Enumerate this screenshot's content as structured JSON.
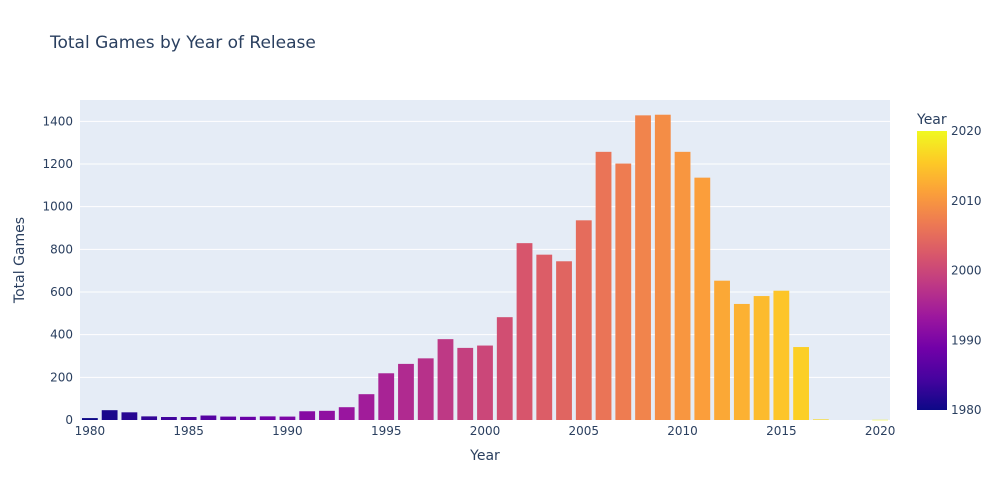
{
  "chart_data": {
    "type": "bar",
    "title": "Total Games by Year of Release",
    "xlabel": "Year",
    "ylabel": "Total Games",
    "xlim": [
      1979.5,
      2020.5
    ],
    "ylim": [
      0,
      1500
    ],
    "x_ticks": [
      "1980",
      "1985",
      "1990",
      "1995",
      "2000",
      "2005",
      "2010",
      "2015",
      "2020"
    ],
    "y_ticks": [
      "0",
      "200",
      "400",
      "600",
      "800",
      "1000",
      "1200",
      "1400"
    ],
    "colorbar": {
      "title": "Year",
      "range": [
        1980,
        2020
      ],
      "ticks": [
        "1980",
        "1990",
        "2000",
        "2010",
        "2020"
      ]
    },
    "colorscale": "Plasma",
    "grid": true,
    "years": [
      1980,
      1981,
      1982,
      1983,
      1984,
      1985,
      1986,
      1987,
      1988,
      1989,
      1990,
      1991,
      1992,
      1993,
      1994,
      1995,
      1996,
      1997,
      1998,
      1999,
      2000,
      2001,
      2002,
      2003,
      2004,
      2005,
      2006,
      2007,
      2008,
      2009,
      2010,
      2011,
      2012,
      2013,
      2014,
      2015,
      2016,
      2017,
      2018,
      2019,
      2020
    ],
    "values": [
      9,
      46,
      36,
      17,
      14,
      14,
      21,
      16,
      15,
      17,
      16,
      41,
      43,
      60,
      121,
      219,
      263,
      289,
      379,
      338,
      349,
      482,
      829,
      775,
      744,
      936,
      1257,
      1202,
      1428,
      1431,
      1257,
      1136,
      653,
      544,
      581,
      606,
      342,
      3,
      0,
      0,
      1
    ]
  }
}
